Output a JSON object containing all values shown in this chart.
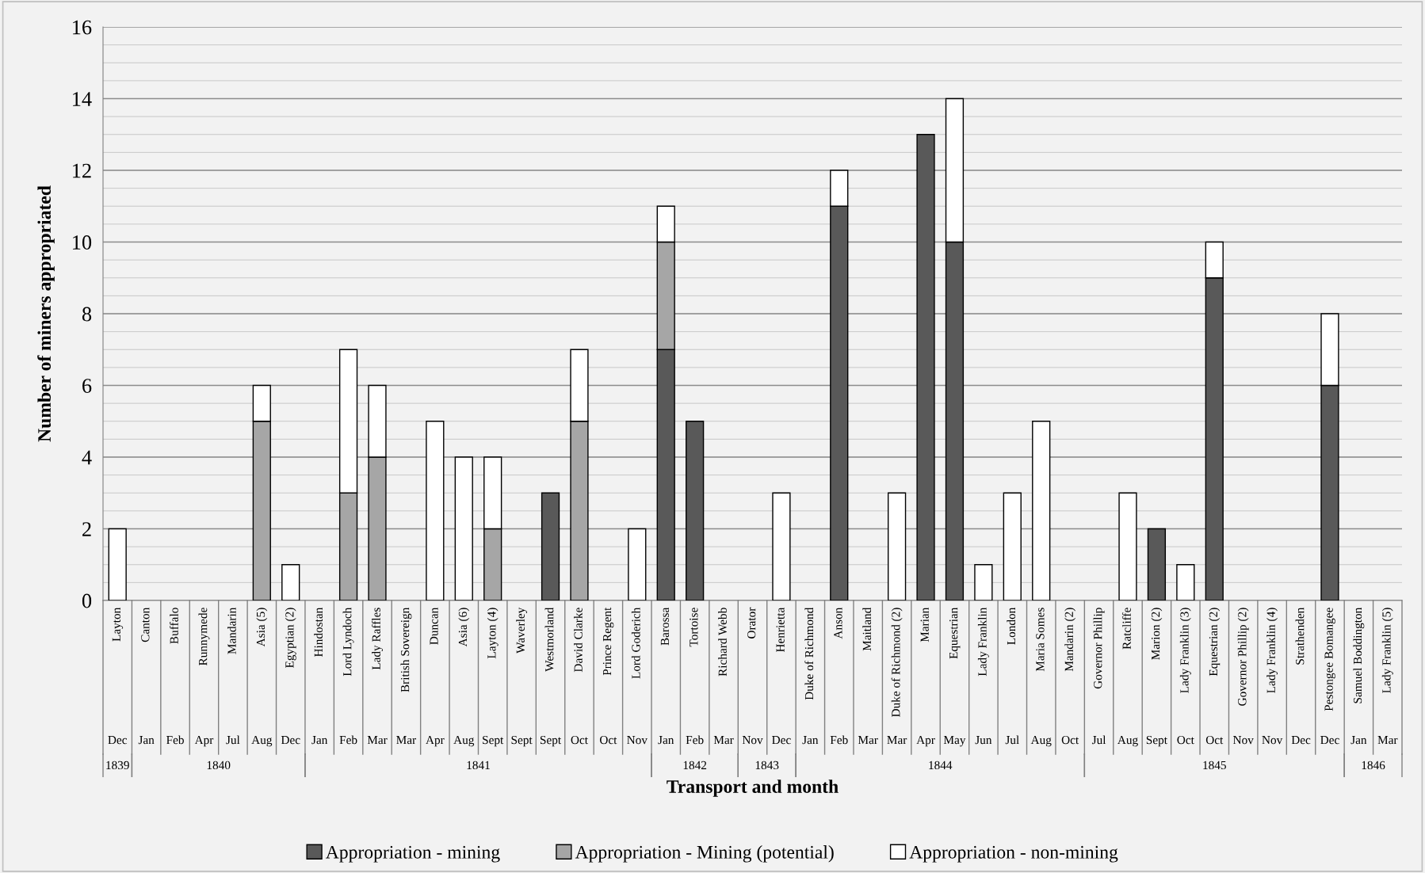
{
  "chart_data": {
    "type": "bar",
    "stacked": true,
    "xlabel": "Transport and month",
    "ylabel": "Number of miners appropriated",
    "categories": [
      "Layton",
      "Canton",
      "Buffalo",
      "Runnymede",
      "Mandarin",
      "Asia (5)",
      "Egyptian (2)",
      "Hindostan",
      "Lord Lyndoch",
      "Lady Raffles",
      "British Sovereign",
      "Duncan",
      "Asia (6)",
      "Layton (4)",
      "Waverley",
      "Westmorland",
      "David Clarke",
      "Prince Regent",
      "Lord Goderich",
      "Barossa",
      "Tortoise",
      "Richard Webb",
      "Orator",
      "Henrietta",
      "Duke of Richmond",
      "Anson",
      "Maitland",
      "Duke of Richmond (2)",
      "Marian",
      "Equestrian",
      "Lady Franklin",
      "London",
      "Maria Somes",
      "Mandarin (2)",
      "Governor Phillip",
      "Ratcliffe",
      "Marion (2)",
      "Lady Franklin (3)",
      "Equestrian (2)",
      "Governor Phillip (2)",
      "Lady Franklin (4)",
      "Strathenden",
      "Pestongee Bomangee",
      "Samuel Boddington",
      "Lady Franklin (5)"
    ],
    "series": [
      {
        "name": "Appropriation - mining",
        "color": "#595959",
        "values": [
          0,
          0,
          0,
          0,
          0,
          0,
          0,
          0,
          0,
          0,
          0,
          0,
          0,
          0,
          0,
          3,
          0,
          0,
          0,
          7,
          5,
          0,
          0,
          0,
          0,
          11,
          0,
          0,
          13,
          10,
          0,
          0,
          0,
          0,
          0,
          0,
          2,
          0,
          9,
          0,
          0,
          0,
          6,
          0,
          0
        ]
      },
      {
        "name": "Appropriation - Mining (potential)",
        "color": "#a6a6a6",
        "values": [
          0,
          0,
          0,
          0,
          0,
          5,
          0,
          0,
          3,
          4,
          0,
          0,
          0,
          2,
          0,
          0,
          5,
          0,
          0,
          3,
          0,
          0,
          0,
          0,
          0,
          0,
          0,
          0,
          0,
          0,
          0,
          0,
          0,
          0,
          0,
          0,
          0,
          0,
          0,
          0,
          0,
          0,
          0,
          0,
          0
        ]
      },
      {
        "name": "Appropriation - non-mining",
        "color": "#ffffff",
        "values": [
          2,
          0,
          0,
          0,
          0,
          1,
          1,
          0,
          4,
          2,
          0,
          5,
          4,
          2,
          0,
          0,
          2,
          0,
          2,
          1,
          0,
          0,
          0,
          3,
          0,
          1,
          0,
          3,
          0,
          4,
          1,
          3,
          5,
          0,
          0,
          3,
          0,
          1,
          1,
          0,
          0,
          0,
          2,
          0,
          0
        ]
      }
    ],
    "ylim": [
      0,
      16
    ],
    "yticks": [
      0,
      2,
      4,
      6,
      8,
      10,
      12,
      14,
      16
    ],
    "grid": "y",
    "legend": "bottom",
    "annotations": [
      "Dec",
      "Jan",
      "Feb",
      "Apr",
      "Jul",
      "Aug",
      "Dec",
      "Jan",
      "Feb",
      "Mar",
      "Mar",
      "Apr",
      "Aug",
      "Sept",
      "Sept",
      "Sept",
      "Oct",
      "Oct",
      "Nov",
      "Jan",
      "Feb",
      "Mar",
      "Nov",
      "Dec",
      "Jan",
      "Feb",
      "Mar",
      "Mar",
      "Apr",
      "May",
      "Jun",
      "Jul",
      "Aug",
      "Oct",
      "Jul",
      "Aug",
      "Sept",
      "Oct",
      "Oct",
      "Nov",
      "Nov",
      "Dec",
      "Dec",
      "Jan",
      "Mar",
      "1839",
      "1840",
      "1841",
      "1842",
      "1843",
      "1844",
      "1845",
      "1846"
    ]
  }
}
